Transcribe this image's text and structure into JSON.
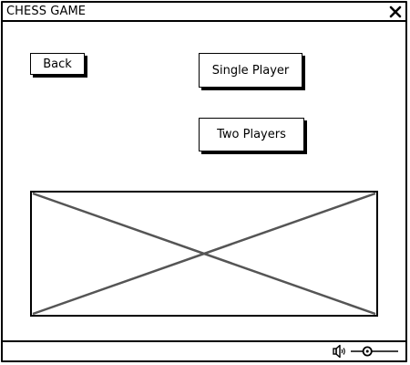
{
  "window": {
    "title": "CHESS GAME"
  },
  "buttons": {
    "back_label": "Back",
    "single_player_label": "Single Player",
    "two_players_label": "Two Players"
  },
  "icons": {
    "close": "close-icon",
    "image_placeholder": "image-placeholder-icon",
    "speaker": "speaker-icon",
    "volume_slider": "volume-slider"
  },
  "volume": {
    "level": 0.35
  },
  "colors": {
    "stroke": "#000000",
    "placeholder_cross": "#555555",
    "background": "#ffffff"
  }
}
